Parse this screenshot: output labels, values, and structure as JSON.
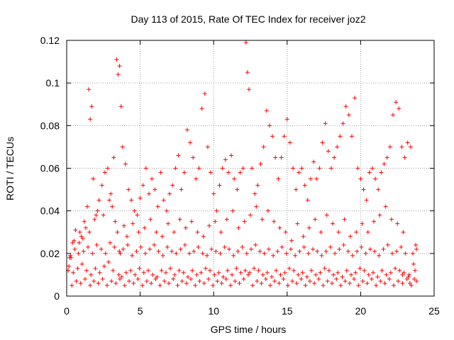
{
  "chart_data": {
    "type": "scatter",
    "title": "Day 113 of 2015, Rate Of TEC Index for receiver joz2",
    "xlabel": "GPS time / hours",
    "ylabel": "ROTI / TECUs",
    "xlim": [
      0,
      25
    ],
    "ylim": [
      0,
      0.12
    ],
    "xticks": [
      0,
      5,
      10,
      15,
      20,
      25
    ],
    "xtick_labels": [
      "0",
      "5",
      "10",
      "15",
      "20",
      "25"
    ],
    "yticks": [
      0,
      0.02,
      0.04,
      0.06,
      0.08,
      0.1,
      0.12
    ],
    "ytick_labels": [
      "0",
      "0.02",
      "0.04",
      "0.06",
      "0.08",
      "0.1",
      "0.12"
    ],
    "grid": true,
    "marker": "plus",
    "color": "#ff0000",
    "series": [
      {
        "x": [
          0.1,
          0.2,
          0.4,
          0.6,
          0.8,
          1.0,
          1.2,
          1.4,
          1.5,
          1.6,
          1.7,
          1.8,
          2.0,
          2.2,
          2.4,
          2.6,
          2.8,
          3.0,
          3.2,
          3.4,
          3.5,
          3.6,
          3.7,
          3.8,
          4.0,
          4.2,
          4.4,
          4.6,
          4.8,
          5.0,
          5.2,
          5.4,
          5.6,
          5.8,
          6.0,
          6.2,
          6.4,
          6.6,
          6.8,
          7.0,
          7.2,
          7.4,
          7.6,
          7.8,
          8.0,
          8.2,
          8.4,
          8.6,
          8.8,
          9.0,
          9.2,
          9.4,
          9.6,
          9.8,
          10.0,
          10.2,
          10.4,
          10.6,
          10.8,
          11.0,
          11.2,
          11.4,
          11.6,
          11.8,
          12.0,
          12.2,
          12.3,
          12.4,
          12.6,
          12.8,
          13.0,
          13.2,
          13.4,
          13.6,
          13.8,
          14.0,
          14.2,
          14.4,
          14.6,
          14.8,
          15.0,
          15.2,
          15.4,
          15.6,
          15.8,
          16.0,
          16.2,
          16.4,
          16.6,
          16.8,
          17.0,
          17.2,
          17.4,
          17.6,
          17.8,
          18.0,
          18.2,
          18.4,
          18.6,
          18.8,
          19.0,
          19.2,
          19.4,
          19.6,
          19.8,
          20.0,
          20.2,
          20.4,
          20.6,
          20.8,
          21.0,
          21.2,
          21.4,
          21.6,
          21.8,
          22.0,
          22.2,
          22.4,
          22.6,
          22.8,
          23.0,
          23.2,
          23.4,
          23.6,
          23.8,
          0.3,
          0.5,
          0.9,
          1.1,
          1.3,
          1.55,
          1.9,
          2.1,
          2.5,
          2.9,
          3.1,
          3.3,
          3.45,
          3.9,
          4.1,
          4.5,
          4.9,
          5.3,
          5.7,
          6.1,
          6.5,
          6.9,
          7.3,
          7.7,
          8.1,
          8.5,
          8.9,
          9.3,
          9.7,
          10.1,
          10.5,
          10.9,
          11.3,
          11.7,
          12.1,
          12.5,
          12.9,
          13.3,
          13.7,
          14.1,
          14.5,
          14.9,
          15.3,
          15.7,
          16.1,
          16.5,
          16.9,
          17.3,
          17.7,
          18.1,
          18.5,
          18.9,
          19.3,
          19.7,
          20.1,
          20.5,
          20.9,
          21.3,
          21.7,
          22.1,
          22.5,
          22.9,
          23.3,
          23.7,
          0.15,
          0.45,
          0.75,
          1.05,
          1.35,
          1.65,
          1.95,
          2.25,
          2.55,
          2.85,
          3.15,
          3.55,
          3.75,
          4.05,
          4.35,
          4.65,
          4.95,
          5.25,
          5.55,
          5.85,
          6.15,
          6.45,
          6.75,
          7.05,
          7.35,
          7.65,
          7.95,
          8.25,
          8.55,
          8.85,
          9.15,
          9.45,
          9.75,
          10.05,
          10.35,
          10.65,
          10.95,
          11.25,
          11.55,
          11.85,
          12.15,
          12.35,
          12.45,
          12.75,
          13.05,
          13.35,
          13.65,
          13.95,
          14.25,
          14.55,
          14.85,
          15.15,
          15.45,
          15.75,
          16.05,
          16.35,
          16.65,
          16.95,
          17.25,
          17.55,
          17.85,
          18.15,
          18.45,
          18.75,
          19.05,
          19.35,
          19.65,
          19.95,
          20.25,
          20.55,
          20.85,
          21.15,
          21.45,
          21.75,
          22.05,
          22.35,
          22.65,
          22.85,
          22.95,
          23.25,
          23.55,
          23.75,
          0.25,
          0.55,
          0.85,
          1.15,
          1.45,
          1.75,
          2.05,
          2.35,
          2.65,
          2.95,
          3.25,
          3.58,
          3.65,
          3.85,
          4.15,
          4.45,
          4.75,
          5.05,
          5.35,
          5.65,
          5.95,
          6.25,
          6.55,
          6.85,
          7.15,
          7.45,
          7.75,
          8.05,
          8.35,
          8.65,
          8.95,
          9.25,
          9.55,
          9.85,
          10.15,
          10.45,
          10.75,
          11.05,
          11.35,
          11.65,
          11.95,
          12.25,
          12.55,
          12.85,
          13.15,
          13.45,
          13.75,
          14.05,
          14.35,
          14.65,
          14.95,
          15.25,
          15.55,
          15.85,
          16.15,
          16.45,
          16.75,
          17.05,
          17.35,
          17.65,
          17.95,
          18.25,
          18.55,
          18.85,
          19.15,
          19.45,
          19.75,
          20.05,
          20.35,
          20.65,
          20.95,
          21.25,
          21.55,
          21.85,
          22.15,
          22.45,
          22.75,
          23.05,
          23.35,
          23.65,
          0.35,
          0.65,
          0.95,
          1.25,
          1.6,
          1.85,
          2.15,
          2.45,
          2.75,
          3.05,
          3.35,
          3.62,
          3.95,
          4.25,
          4.55,
          4.85,
          5.15,
          5.45,
          5.75,
          6.05,
          6.35,
          6.65,
          6.95,
          7.25,
          7.55,
          7.85,
          8.15,
          8.45,
          8.75,
          9.05,
          9.35,
          9.65,
          9.95,
          10.25,
          10.55,
          10.85,
          11.15,
          11.45,
          11.75,
          12.05,
          12.65,
          12.95,
          13.25,
          13.55,
          13.85,
          14.15,
          14.45,
          14.75,
          15.05,
          15.35,
          15.65,
          15.95,
          16.25,
          16.55,
          16.85,
          17.15,
          17.45,
          17.75,
          18.05,
          18.35,
          18.65,
          18.95,
          19.25,
          19.55,
          19.85,
          20.15,
          20.45,
          20.75,
          21.05,
          21.35,
          21.65,
          21.95,
          22.25,
          22.55,
          22.85,
          23.15,
          23.45,
          23.8
        ],
        "y": [
          0.012,
          0.018,
          0.025,
          0.031,
          0.02,
          0.028,
          0.035,
          0.042,
          0.097,
          0.083,
          0.089,
          0.055,
          0.038,
          0.045,
          0.052,
          0.058,
          0.06,
          0.048,
          0.065,
          0.111,
          0.104,
          0.108,
          0.089,
          0.07,
          0.062,
          0.05,
          0.045,
          0.04,
          0.038,
          0.046,
          0.052,
          0.06,
          0.048,
          0.055,
          0.05,
          0.042,
          0.058,
          0.045,
          0.04,
          0.048,
          0.052,
          0.06,
          0.066,
          0.05,
          0.058,
          0.078,
          0.072,
          0.065,
          0.055,
          0.06,
          0.088,
          0.095,
          0.07,
          0.058,
          0.048,
          0.04,
          0.052,
          0.06,
          0.064,
          0.058,
          0.066,
          0.055,
          0.05,
          0.058,
          0.06,
          0.119,
          0.105,
          0.097,
          0.06,
          0.048,
          0.052,
          0.062,
          0.07,
          0.087,
          0.08,
          0.075,
          0.065,
          0.055,
          0.065,
          0.075,
          0.083,
          0.072,
          0.06,
          0.05,
          0.058,
          0.06,
          0.052,
          0.045,
          0.055,
          0.063,
          0.055,
          0.06,
          0.072,
          0.081,
          0.068,
          0.06,
          0.065,
          0.07,
          0.075,
          0.081,
          0.089,
          0.085,
          0.075,
          0.093,
          0.06,
          0.055,
          0.05,
          0.045,
          0.058,
          0.06,
          0.055,
          0.05,
          0.058,
          0.062,
          0.065,
          0.07,
          0.085,
          0.091,
          0.088,
          0.07,
          0.065,
          0.072,
          0.07,
          0.015,
          0.022,
          0.018,
          0.026,
          0.03,
          0.027,
          0.032,
          0.03,
          0.036,
          0.04,
          0.038,
          0.045,
          0.042,
          0.035,
          0.03,
          0.033,
          0.028,
          0.034,
          0.03,
          0.032,
          0.036,
          0.03,
          0.028,
          0.034,
          0.03,
          0.036,
          0.032,
          0.035,
          0.03,
          0.028,
          0.033,
          0.035,
          0.03,
          0.036,
          0.04,
          0.032,
          0.035,
          0.038,
          0.042,
          0.036,
          0.04,
          0.035,
          0.032,
          0.03,
          0.026,
          0.034,
          0.028,
          0.032,
          0.036,
          0.03,
          0.038,
          0.034,
          0.03,
          0.036,
          0.028,
          0.03,
          0.034,
          0.03,
          0.035,
          0.038,
          0.042,
          0.036,
          0.034,
          0.03,
          0.01,
          0.012,
          0.014,
          0.011,
          0.013,
          0.015,
          0.012,
          0.01,
          0.013,
          0.011,
          0.014,
          0.016,
          0.012,
          0.01,
          0.009,
          0.011,
          0.012,
          0.01,
          0.013,
          0.011,
          0.012,
          0.01,
          0.009,
          0.012,
          0.011,
          0.013,
          0.01,
          0.012,
          0.011,
          0.009,
          0.012,
          0.01,
          0.011,
          0.013,
          0.012,
          0.01,
          0.011,
          0.009,
          0.012,
          0.01,
          0.013,
          0.011,
          0.012,
          0.01,
          0.011,
          0.013,
          0.012,
          0.01,
          0.011,
          0.009,
          0.012,
          0.01,
          0.011,
          0.013,
          0.012,
          0.01,
          0.011,
          0.009,
          0.012,
          0.01,
          0.011,
          0.013,
          0.012,
          0.01,
          0.011,
          0.009,
          0.012,
          0.01,
          0.011,
          0.013,
          0.012,
          0.01,
          0.011,
          0.009,
          0.012,
          0.01,
          0.011,
          0.013,
          0.012,
          0.01,
          0.011,
          0.009,
          0.02,
          0.024,
          0.019,
          0.022,
          0.025,
          0.021,
          0.023,
          0.02,
          0.024,
          0.022,
          0.02,
          0.025,
          0.023,
          0.021,
          0.02,
          0.022,
          0.024,
          0.019,
          0.021,
          0.023,
          0.02,
          0.022,
          0.024,
          0.021,
          0.019,
          0.023,
          0.021,
          0.02,
          0.022,
          0.024,
          0.02,
          0.021,
          0.023,
          0.02,
          0.019,
          0.022,
          0.021,
          0.02,
          0.023,
          0.022,
          0.019,
          0.021,
          0.023,
          0.02,
          0.022,
          0.024,
          0.021,
          0.02,
          0.022,
          0.019,
          0.021,
          0.023,
          0.02,
          0.022,
          0.019,
          0.021,
          0.023,
          0.02,
          0.022,
          0.021,
          0.019,
          0.021,
          0.023,
          0.02,
          0.022,
          0.024,
          0.021,
          0.019,
          0.021,
          0.023,
          0.02,
          0.022,
          0.021,
          0.019,
          0.022,
          0.024,
          0.02,
          0.021,
          0.023,
          0.02,
          0.006,
          0.008,
          0.005,
          0.007,
          0.006,
          0.008,
          0.005,
          0.007,
          0.006,
          0.008,
          0.005,
          0.007,
          0.006,
          0.008,
          0.005,
          0.007,
          0.006,
          0.008,
          0.005,
          0.007,
          0.006,
          0.008,
          0.005,
          0.007,
          0.006,
          0.008,
          0.005,
          0.007,
          0.006,
          0.008,
          0.005,
          0.007,
          0.006,
          0.008,
          0.005,
          0.007,
          0.006,
          0.008,
          0.005,
          0.007,
          0.006,
          0.008,
          0.005,
          0.007,
          0.006,
          0.008,
          0.005,
          0.007,
          0.006,
          0.008,
          0.005,
          0.007,
          0.006,
          0.008,
          0.005,
          0.007,
          0.006,
          0.008,
          0.005,
          0.007,
          0.006,
          0.008,
          0.005,
          0.007,
          0.006,
          0.008,
          0.005,
          0.007,
          0.006,
          0.008,
          0.005,
          0.007,
          0.006,
          0.008,
          0.005,
          0.007,
          0.006,
          0.008,
          0.005,
          0.007
        ]
      }
    ]
  }
}
